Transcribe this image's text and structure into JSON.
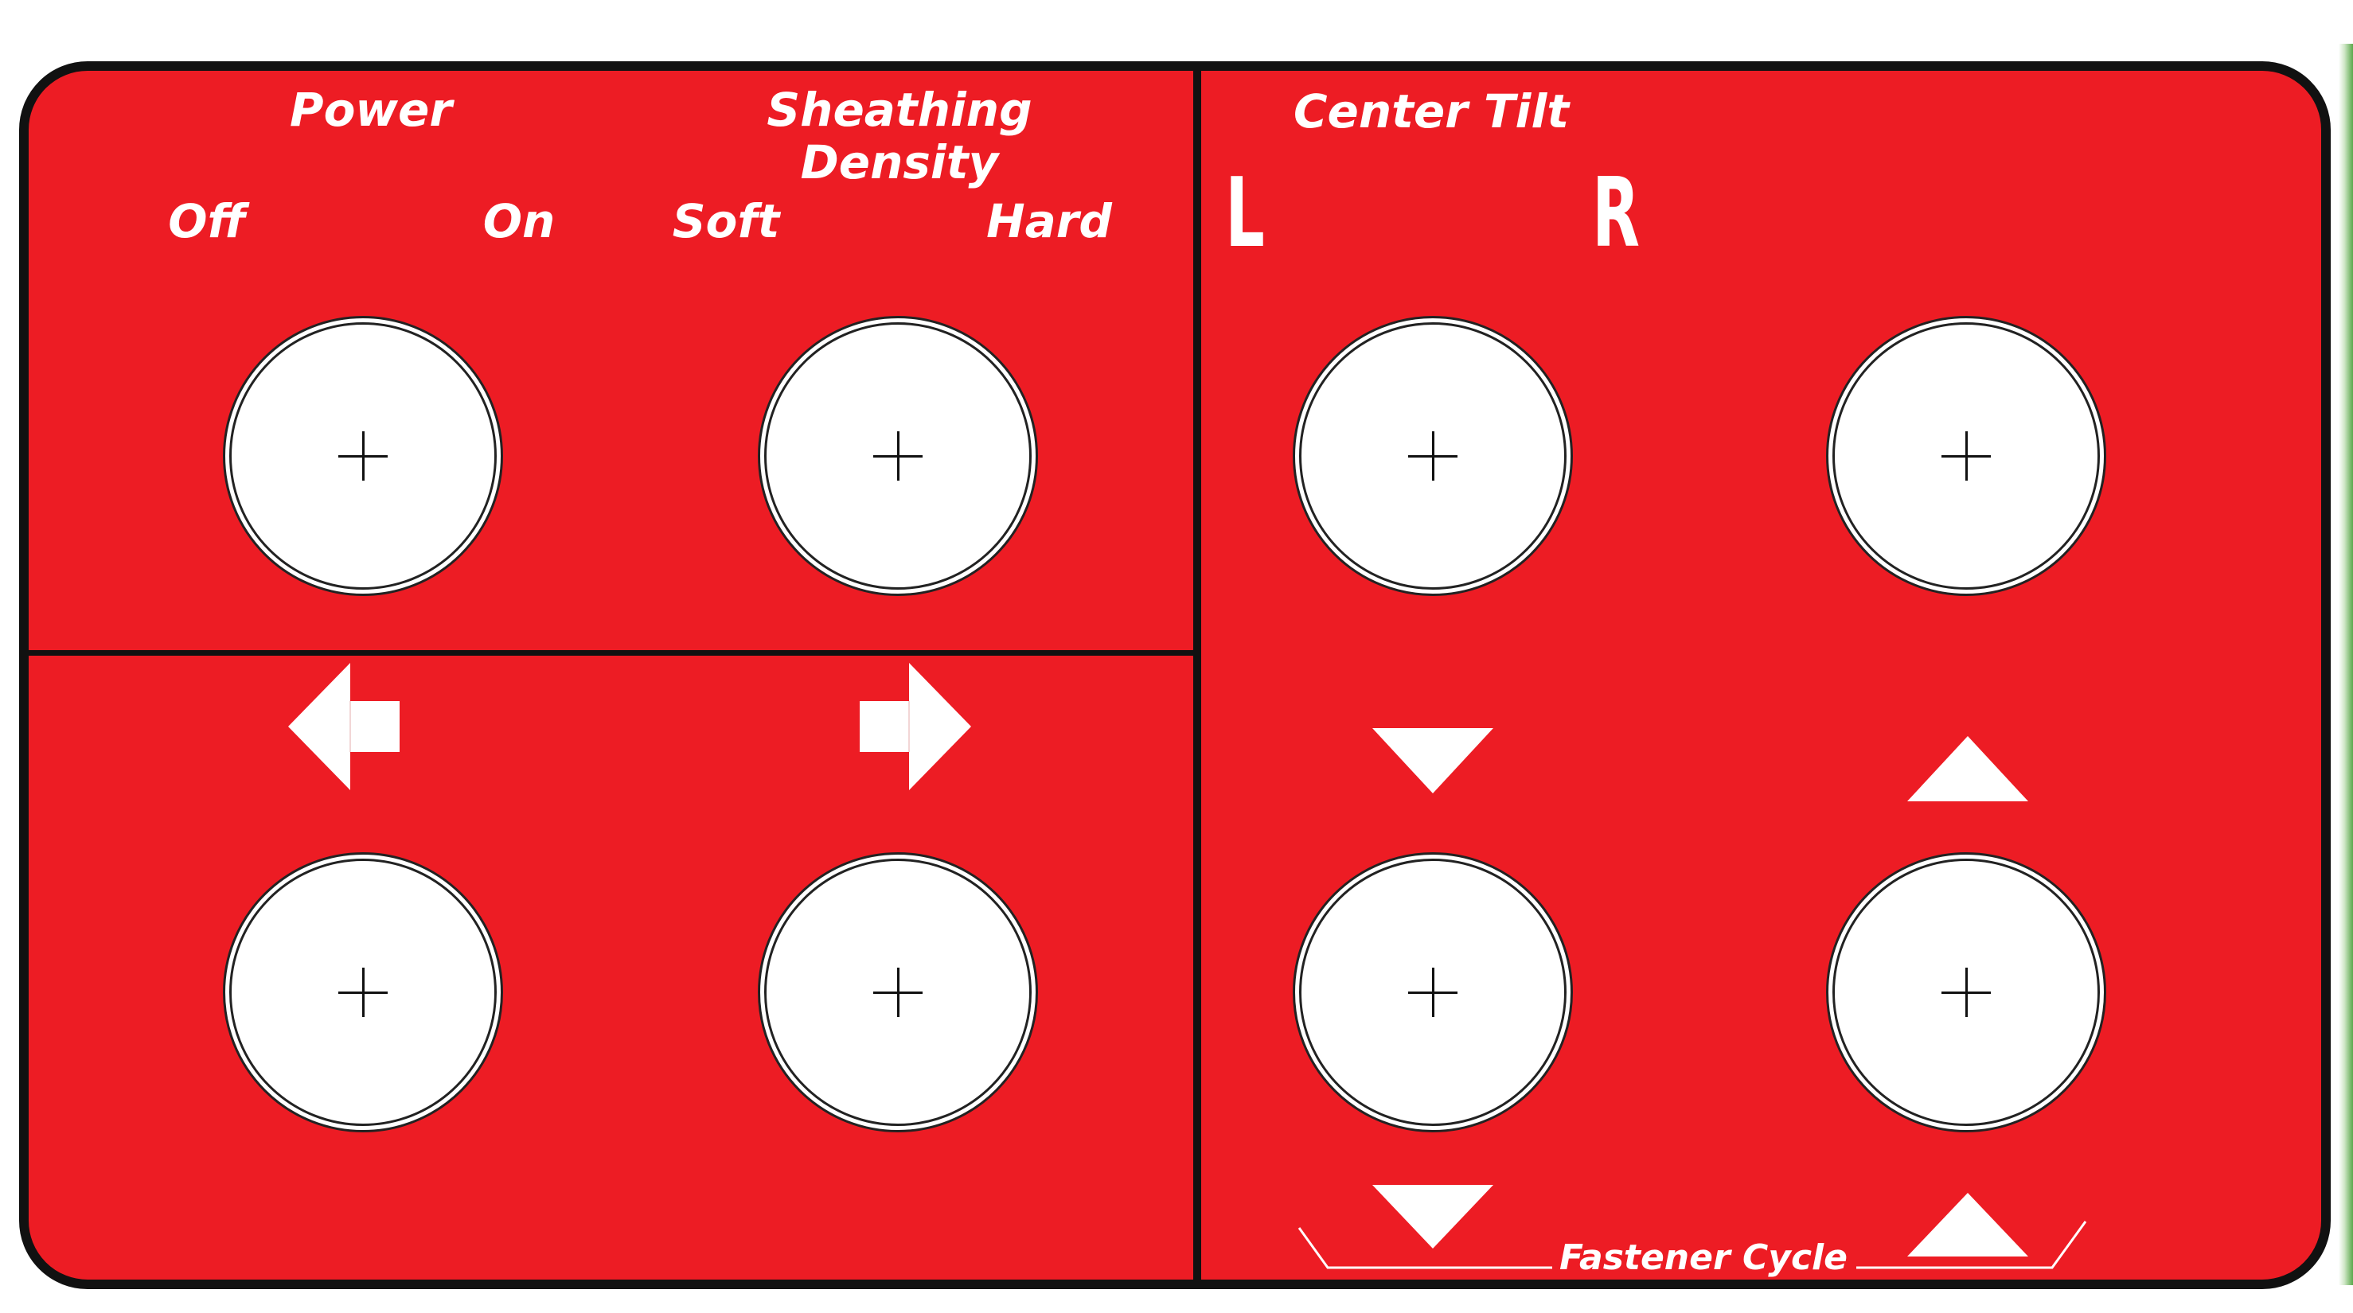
{
  "colors": {
    "panel": "#ed1c24",
    "border": "#111111",
    "label": "#ffffff",
    "button_face": "#ffffff",
    "accent_strip": "#5aa84a"
  },
  "power": {
    "title": "Power",
    "left_label": "Off",
    "right_label": "On"
  },
  "sheathing_density": {
    "title_line1": "Sheathing",
    "title_line2": "Density",
    "left_label": "Soft",
    "right_label": "Hard"
  },
  "center_tilt": {
    "title": "Center Tilt",
    "left_label": "L",
    "right_label": "R"
  },
  "fastener_cycle": {
    "label": "Fastener Cycle"
  },
  "icons": {
    "move_left": "arrow-left-icon",
    "move_right": "arrow-right-icon",
    "tilt_down": "triangle-down-icon",
    "tilt_up": "triangle-up-icon",
    "fastener_down": "triangle-down-icon",
    "fastener_up": "triangle-up-icon"
  }
}
